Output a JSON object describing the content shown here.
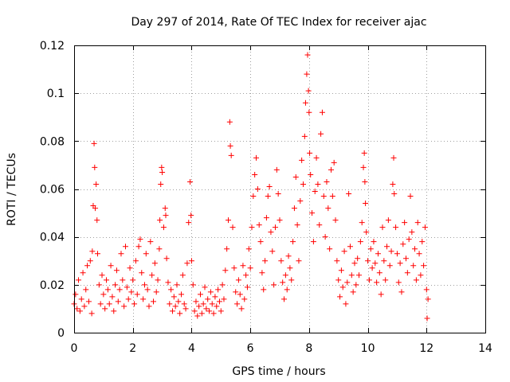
{
  "chart_data": {
    "type": "scatter",
    "title": "Day 297 of 2014, Rate Of TEC Index for receiver ajac",
    "xlabel": "GPS time / hours",
    "ylabel": "ROTI / TECUs",
    "xlim": [
      0,
      14
    ],
    "ylim": [
      0,
      0.12
    ],
    "xticks": [
      0,
      2,
      4,
      6,
      8,
      10,
      12,
      14
    ],
    "xtick_labels": [
      "0",
      "2",
      "4",
      "6",
      "8",
      "10",
      "12",
      "14"
    ],
    "yticks": [
      0,
      0.02,
      0.04,
      0.06,
      0.08,
      0.1,
      0.12
    ],
    "ytick_labels": [
      "0",
      "0.02",
      "0.04",
      "0.06",
      "0.08",
      "0.1",
      "0.12"
    ],
    "grid": true,
    "marker": "+",
    "color": "#ff0000",
    "series": [
      {
        "name": "ROTI",
        "points": [
          [
            0.0,
            0.012
          ],
          [
            0.05,
            0.016
          ],
          [
            0.1,
            0.01
          ],
          [
            0.15,
            0.022
          ],
          [
            0.2,
            0.009
          ],
          [
            0.25,
            0.014
          ],
          [
            0.3,
            0.025
          ],
          [
            0.35,
            0.011
          ],
          [
            0.4,
            0.018
          ],
          [
            0.45,
            0.028
          ],
          [
            0.5,
            0.013
          ],
          [
            0.55,
            0.03
          ],
          [
            0.6,
            0.008
          ],
          [
            0.62,
            0.034
          ],
          [
            0.65,
            0.053
          ],
          [
            0.68,
            0.079
          ],
          [
            0.7,
            0.069
          ],
          [
            0.72,
            0.052
          ],
          [
            0.75,
            0.062
          ],
          [
            0.78,
            0.047
          ],
          [
            0.8,
            0.033
          ],
          [
            0.85,
            0.02
          ],
          [
            0.9,
            0.012
          ],
          [
            0.95,
            0.024
          ],
          [
            1.0,
            0.016
          ],
          [
            1.05,
            0.01
          ],
          [
            1.1,
            0.022
          ],
          [
            1.15,
            0.018
          ],
          [
            1.2,
            0.012
          ],
          [
            1.25,
            0.028
          ],
          [
            1.3,
            0.015
          ],
          [
            1.35,
            0.009
          ],
          [
            1.4,
            0.02
          ],
          [
            1.45,
            0.026
          ],
          [
            1.5,
            0.013
          ],
          [
            1.55,
            0.018
          ],
          [
            1.6,
            0.033
          ],
          [
            1.65,
            0.022
          ],
          [
            1.7,
            0.011
          ],
          [
            1.75,
            0.036
          ],
          [
            1.8,
            0.019
          ],
          [
            1.85,
            0.014
          ],
          [
            1.9,
            0.027
          ],
          [
            1.95,
            0.017
          ],
          [
            2.0,
            0.022
          ],
          [
            2.05,
            0.012
          ],
          [
            2.1,
            0.03
          ],
          [
            2.15,
            0.016
          ],
          [
            2.2,
            0.036
          ],
          [
            2.25,
            0.039
          ],
          [
            2.3,
            0.025
          ],
          [
            2.35,
            0.014
          ],
          [
            2.4,
            0.02
          ],
          [
            2.45,
            0.033
          ],
          [
            2.5,
            0.018
          ],
          [
            2.55,
            0.011
          ],
          [
            2.6,
            0.038
          ],
          [
            2.65,
            0.024
          ],
          [
            2.7,
            0.013
          ],
          [
            2.75,
            0.029
          ],
          [
            2.8,
            0.017
          ],
          [
            2.85,
            0.022
          ],
          [
            2.9,
            0.035
          ],
          [
            2.92,
            0.047
          ],
          [
            2.95,
            0.062
          ],
          [
            2.98,
            0.069
          ],
          [
            3.0,
            0.067
          ],
          [
            3.05,
            0.044
          ],
          [
            3.1,
            0.052
          ],
          [
            3.12,
            0.049
          ],
          [
            3.15,
            0.031
          ],
          [
            3.2,
            0.021
          ],
          [
            3.25,
            0.012
          ],
          [
            3.3,
            0.018
          ],
          [
            3.35,
            0.009
          ],
          [
            3.4,
            0.015
          ],
          [
            3.45,
            0.011
          ],
          [
            3.5,
            0.02
          ],
          [
            3.55,
            0.013
          ],
          [
            3.6,
            0.008
          ],
          [
            3.65,
            0.016
          ],
          [
            3.7,
            0.024
          ],
          [
            3.75,
            0.012
          ],
          [
            3.8,
            0.01
          ],
          [
            3.85,
            0.029
          ],
          [
            3.9,
            0.046
          ],
          [
            3.95,
            0.063
          ],
          [
            3.98,
            0.049
          ],
          [
            4.0,
            0.03
          ],
          [
            4.05,
            0.02
          ],
          [
            4.1,
            0.009
          ],
          [
            4.15,
            0.013
          ],
          [
            4.2,
            0.007
          ],
          [
            4.25,
            0.011
          ],
          [
            4.3,
            0.016
          ],
          [
            4.35,
            0.008
          ],
          [
            4.4,
            0.012
          ],
          [
            4.45,
            0.019
          ],
          [
            4.5,
            0.01
          ],
          [
            4.55,
            0.014
          ],
          [
            4.6,
            0.009
          ],
          [
            4.65,
            0.017
          ],
          [
            4.7,
            0.012
          ],
          [
            4.75,
            0.008
          ],
          [
            4.8,
            0.015
          ],
          [
            4.85,
            0.011
          ],
          [
            4.9,
            0.018
          ],
          [
            4.95,
            0.013
          ],
          [
            5.0,
            0.009
          ],
          [
            5.05,
            0.02
          ],
          [
            5.1,
            0.014
          ],
          [
            5.15,
            0.026
          ],
          [
            5.2,
            0.035
          ],
          [
            5.25,
            0.047
          ],
          [
            5.3,
            0.088
          ],
          [
            5.32,
            0.078
          ],
          [
            5.35,
            0.074
          ],
          [
            5.4,
            0.044
          ],
          [
            5.45,
            0.027
          ],
          [
            5.5,
            0.017
          ],
          [
            5.55,
            0.012
          ],
          [
            5.6,
            0.022
          ],
          [
            5.65,
            0.016
          ],
          [
            5.7,
            0.01
          ],
          [
            5.75,
            0.028
          ],
          [
            5.8,
            0.014
          ],
          [
            5.85,
            0.024
          ],
          [
            5.9,
            0.019
          ],
          [
            5.95,
            0.035
          ],
          [
            6.0,
            0.027
          ],
          [
            6.05,
            0.044
          ],
          [
            6.1,
            0.057
          ],
          [
            6.15,
            0.066
          ],
          [
            6.2,
            0.073
          ],
          [
            6.25,
            0.06
          ],
          [
            6.3,
            0.045
          ],
          [
            6.35,
            0.038
          ],
          [
            6.4,
            0.025
          ],
          [
            6.45,
            0.018
          ],
          [
            6.5,
            0.03
          ],
          [
            6.55,
            0.048
          ],
          [
            6.6,
            0.057
          ],
          [
            6.65,
            0.061
          ],
          [
            6.7,
            0.042
          ],
          [
            6.75,
            0.034
          ],
          [
            6.8,
            0.02
          ],
          [
            6.85,
            0.044
          ],
          [
            6.9,
            0.068
          ],
          [
            6.95,
            0.058
          ],
          [
            7.0,
            0.047
          ],
          [
            7.05,
            0.03
          ],
          [
            7.1,
            0.021
          ],
          [
            7.15,
            0.014
          ],
          [
            7.2,
            0.024
          ],
          [
            7.25,
            0.018
          ],
          [
            7.3,
            0.032
          ],
          [
            7.35,
            0.027
          ],
          [
            7.4,
            0.022
          ],
          [
            7.45,
            0.038
          ],
          [
            7.5,
            0.052
          ],
          [
            7.55,
            0.065
          ],
          [
            7.6,
            0.045
          ],
          [
            7.65,
            0.03
          ],
          [
            7.7,
            0.055
          ],
          [
            7.75,
            0.072
          ],
          [
            7.8,
            0.062
          ],
          [
            7.85,
            0.082
          ],
          [
            7.88,
            0.096
          ],
          [
            7.92,
            0.108
          ],
          [
            7.95,
            0.116
          ],
          [
            7.98,
            0.101
          ],
          [
            8.0,
            0.092
          ],
          [
            8.02,
            0.075
          ],
          [
            8.05,
            0.066
          ],
          [
            8.1,
            0.05
          ],
          [
            8.15,
            0.038
          ],
          [
            8.2,
            0.059
          ],
          [
            8.25,
            0.073
          ],
          [
            8.3,
            0.062
          ],
          [
            8.35,
            0.045
          ],
          [
            8.4,
            0.083
          ],
          [
            8.45,
            0.092
          ],
          [
            8.5,
            0.057
          ],
          [
            8.55,
            0.04
          ],
          [
            8.6,
            0.063
          ],
          [
            8.65,
            0.052
          ],
          [
            8.7,
            0.035
          ],
          [
            8.75,
            0.068
          ],
          [
            8.8,
            0.057
          ],
          [
            8.85,
            0.071
          ],
          [
            8.9,
            0.047
          ],
          [
            8.95,
            0.03
          ],
          [
            9.0,
            0.022
          ],
          [
            9.05,
            0.015
          ],
          [
            9.1,
            0.026
          ],
          [
            9.15,
            0.019
          ],
          [
            9.2,
            0.034
          ],
          [
            9.25,
            0.012
          ],
          [
            9.3,
            0.021
          ],
          [
            9.35,
            0.058
          ],
          [
            9.4,
            0.036
          ],
          [
            9.45,
            0.024
          ],
          [
            9.5,
            0.017
          ],
          [
            9.55,
            0.029
          ],
          [
            9.6,
            0.02
          ],
          [
            9.65,
            0.031
          ],
          [
            9.7,
            0.024
          ],
          [
            9.75,
            0.038
          ],
          [
            9.8,
            0.046
          ],
          [
            9.85,
            0.069
          ],
          [
            9.88,
            0.075
          ],
          [
            9.9,
            0.063
          ],
          [
            9.92,
            0.054
          ],
          [
            9.95,
            0.042
          ],
          [
            10.0,
            0.03
          ],
          [
            10.05,
            0.022
          ],
          [
            10.1,
            0.035
          ],
          [
            10.15,
            0.027
          ],
          [
            10.2,
            0.038
          ],
          [
            10.25,
            0.029
          ],
          [
            10.3,
            0.021
          ],
          [
            10.35,
            0.033
          ],
          [
            10.4,
            0.025
          ],
          [
            10.45,
            0.016
          ],
          [
            10.5,
            0.044
          ],
          [
            10.55,
            0.03
          ],
          [
            10.6,
            0.022
          ],
          [
            10.65,
            0.036
          ],
          [
            10.7,
            0.047
          ],
          [
            10.75,
            0.028
          ],
          [
            10.8,
            0.034
          ],
          [
            10.85,
            0.062
          ],
          [
            10.88,
            0.073
          ],
          [
            10.9,
            0.058
          ],
          [
            10.95,
            0.044
          ],
          [
            11.0,
            0.033
          ],
          [
            11.05,
            0.021
          ],
          [
            11.1,
            0.029
          ],
          [
            11.15,
            0.017
          ],
          [
            11.2,
            0.037
          ],
          [
            11.25,
            0.046
          ],
          [
            11.3,
            0.031
          ],
          [
            11.35,
            0.025
          ],
          [
            11.4,
            0.039
          ],
          [
            11.45,
            0.057
          ],
          [
            11.5,
            0.042
          ],
          [
            11.55,
            0.028
          ],
          [
            11.6,
            0.035
          ],
          [
            11.65,
            0.022
          ],
          [
            11.7,
            0.046
          ],
          [
            11.75,
            0.033
          ],
          [
            11.8,
            0.024
          ],
          [
            11.85,
            0.038
          ],
          [
            11.9,
            0.028
          ],
          [
            11.95,
            0.044
          ],
          [
            12.0,
            0.018
          ],
          [
            12.02,
            0.006
          ],
          [
            12.05,
            0.014
          ]
        ]
      }
    ]
  }
}
